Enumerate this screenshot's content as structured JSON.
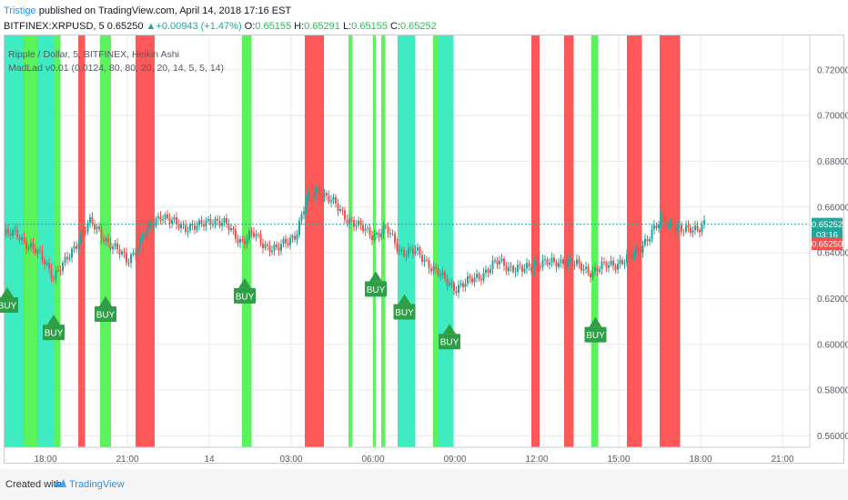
{
  "header": {
    "author": "Tristige",
    "published_text": " published on TradingView.com, April 14, 2018 17:16 EST",
    "symbol": "BITFINEX:XRPUSD, 5",
    "last": "0.65250",
    "change": "+0.00943 (+1.47%)",
    "o_label": "O:",
    "o_value": "0.65155",
    "h_label": "H:",
    "h_value": "0.65291",
    "l_label": "L:",
    "l_value": "0.65155",
    "c_label": "C:",
    "c_value": "0.65252"
  },
  "legend": {
    "line1": "Ripple / Dollar, 5, BITFINEX, Heikin Ashi",
    "line2": "MadLad v0.01 (0.0124, 80, 80, 20, 20, 14, 5, 5, 14)"
  },
  "footer": {
    "created": "Created with",
    "brand": "TradingView"
  },
  "colors": {
    "bull": "#26a69a",
    "bear": "#ef5350",
    "zone_red": "#ff3b3b",
    "zone_green": "#3ff03f",
    "zone_cyan": "#1de9b6",
    "buy_label": "#2e9e47",
    "price_line": "#26a69a"
  },
  "chart_data": {
    "type": "candlestick",
    "title": "Ripple / Dollar, 5, BITFINEX, Heikin Ashi",
    "y_axis": {
      "range": [
        0.555,
        0.735
      ],
      "ticks": [
        {
          "value": 0.72,
          "label": "0.72000"
        },
        {
          "value": 0.7,
          "label": "0.70000"
        },
        {
          "value": 0.68,
          "label": "0.68000"
        },
        {
          "value": 0.66,
          "label": "0.66000"
        },
        {
          "value": 0.64,
          "label": "0.64000"
        },
        {
          "value": 0.62,
          "label": "0.62000"
        },
        {
          "value": 0.6,
          "label": "0.60000"
        },
        {
          "value": 0.58,
          "label": "0.58000"
        },
        {
          "value": 0.56,
          "label": "0.56000"
        }
      ]
    },
    "x_axis": {
      "range": [
        16.5,
        46.0
      ],
      "ticks": [
        {
          "hour": 18,
          "label": "18:00"
        },
        {
          "hour": 21,
          "label": "21:00"
        },
        {
          "hour": 24,
          "label": "14"
        },
        {
          "hour": 27,
          "label": "03:00"
        },
        {
          "hour": 30,
          "label": "06:00"
        },
        {
          "hour": 33,
          "label": "09:00"
        },
        {
          "hour": 36,
          "label": "12:00"
        },
        {
          "hour": 39,
          "label": "15:00"
        },
        {
          "hour": 42,
          "label": "18:00"
        },
        {
          "hour": 45,
          "label": "21:00"
        }
      ]
    },
    "price_path": [
      [
        16.5,
        0.648
      ],
      [
        17.0,
        0.648
      ],
      [
        17.5,
        0.642
      ],
      [
        18.0,
        0.636
      ],
      [
        18.3,
        0.63
      ],
      [
        18.7,
        0.635
      ],
      [
        19.3,
        0.648
      ],
      [
        19.6,
        0.653
      ],
      [
        20.0,
        0.649
      ],
      [
        20.5,
        0.642
      ],
      [
        21.0,
        0.637
      ],
      [
        21.4,
        0.643
      ],
      [
        21.8,
        0.651
      ],
      [
        22.2,
        0.657
      ],
      [
        22.6,
        0.653
      ],
      [
        23.0,
        0.652
      ],
      [
        23.6,
        0.651
      ],
      [
        24.1,
        0.655
      ],
      [
        24.6,
        0.652
      ],
      [
        25.2,
        0.645
      ],
      [
        25.6,
        0.648
      ],
      [
        26.0,
        0.644
      ],
      [
        26.5,
        0.641
      ],
      [
        27.2,
        0.649
      ],
      [
        27.6,
        0.664
      ],
      [
        28.0,
        0.668
      ],
      [
        28.5,
        0.662
      ],
      [
        29.0,
        0.656
      ],
      [
        29.5,
        0.651
      ],
      [
        30.0,
        0.648
      ],
      [
        30.5,
        0.65
      ],
      [
        31.0,
        0.641
      ],
      [
        31.6,
        0.64
      ],
      [
        32.0,
        0.636
      ],
      [
        32.6,
        0.628
      ],
      [
        33.0,
        0.625
      ],
      [
        33.5,
        0.627
      ],
      [
        34.0,
        0.631
      ],
      [
        34.6,
        0.636
      ],
      [
        35.0,
        0.634
      ],
      [
        35.5,
        0.632
      ],
      [
        36.0,
        0.636
      ],
      [
        36.6,
        0.635
      ],
      [
        37.0,
        0.637
      ],
      [
        37.5,
        0.634
      ],
      [
        38.0,
        0.632
      ],
      [
        38.5,
        0.634
      ],
      [
        39.0,
        0.636
      ],
      [
        39.5,
        0.638
      ],
      [
        40.0,
        0.646
      ],
      [
        40.6,
        0.654
      ],
      [
        41.0,
        0.652
      ],
      [
        41.4,
        0.649
      ],
      [
        41.8,
        0.651
      ],
      [
        42.2,
        0.653
      ]
    ],
    "signal_zones": [
      {
        "from": 16.5,
        "to": 17.22,
        "color": "cyan"
      },
      {
        "from": 17.2,
        "to": 17.72,
        "color": "green"
      },
      {
        "from": 17.7,
        "to": 18.3,
        "color": "cyan"
      },
      {
        "from": 18.3,
        "to": 18.55,
        "color": "green"
      },
      {
        "from": 19.2,
        "to": 19.45,
        "color": "red"
      },
      {
        "from": 20.0,
        "to": 20.4,
        "color": "green"
      },
      {
        "from": 21.3,
        "to": 22.0,
        "color": "red"
      },
      {
        "from": 25.2,
        "to": 25.55,
        "color": "green"
      },
      {
        "from": 27.5,
        "to": 28.2,
        "color": "red"
      },
      {
        "from": 29.1,
        "to": 29.25,
        "color": "green"
      },
      {
        "from": 30.0,
        "to": 30.1,
        "color": "green"
      },
      {
        "from": 30.3,
        "to": 30.45,
        "color": "green"
      },
      {
        "from": 30.9,
        "to": 31.55,
        "color": "cyan"
      },
      {
        "from": 32.2,
        "to": 32.4,
        "color": "green"
      },
      {
        "from": 32.4,
        "to": 32.95,
        "color": "cyan"
      },
      {
        "from": 35.8,
        "to": 36.1,
        "color": "red"
      },
      {
        "from": 37.0,
        "to": 37.35,
        "color": "red"
      },
      {
        "from": 38.0,
        "to": 38.25,
        "color": "green"
      },
      {
        "from": 39.3,
        "to": 39.85,
        "color": "red"
      },
      {
        "from": 40.5,
        "to": 41.25,
        "color": "red"
      }
    ],
    "buy_signals": [
      {
        "hour": 16.6,
        "price": 0.617,
        "label": "BUY"
      },
      {
        "hour": 18.3,
        "price": 0.605,
        "label": "BUY"
      },
      {
        "hour": 20.2,
        "price": 0.613,
        "label": "BUY"
      },
      {
        "hour": 25.3,
        "price": 0.621,
        "label": "BUY"
      },
      {
        "hour": 30.1,
        "price": 0.624,
        "label": "BUY"
      },
      {
        "hour": 31.15,
        "price": 0.614,
        "label": "BUY"
      },
      {
        "hour": 32.8,
        "price": 0.601,
        "label": "BUY"
      },
      {
        "hour": 38.15,
        "price": 0.604,
        "label": "BUY"
      }
    ],
    "price_tags": [
      {
        "label": "0.65252",
        "price": 0.6525,
        "color": "#26a69a"
      },
      {
        "label": "03:16",
        "price": 0.648,
        "color": "#26a69a"
      },
      {
        "label": "0.65250",
        "price": 0.644,
        "color": "#ef5350"
      }
    ]
  }
}
